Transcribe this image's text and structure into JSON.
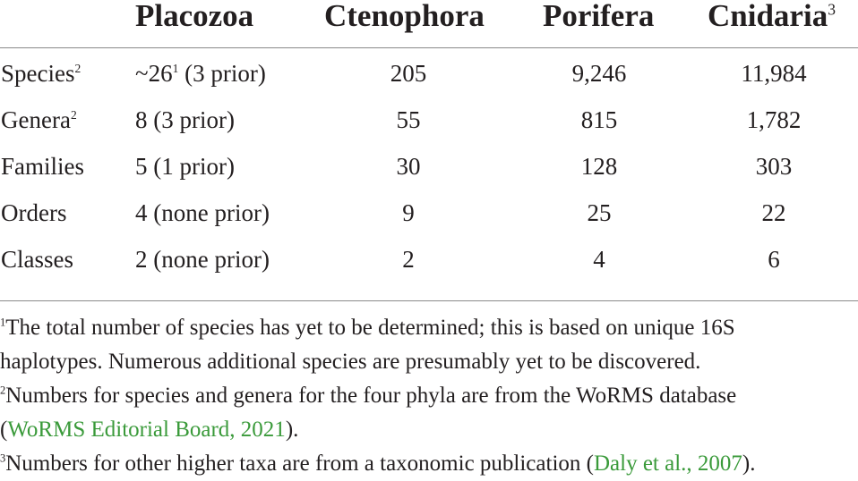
{
  "table": {
    "headers": [
      {
        "label": "Placozoa",
        "sup": ""
      },
      {
        "label": "Ctenophora",
        "sup": ""
      },
      {
        "label": "Porifera",
        "sup": ""
      },
      {
        "label": "Cnidaria",
        "sup": "3"
      }
    ],
    "rows": [
      {
        "label": "Species",
        "label_sup": "2",
        "placozoa_main": "~26",
        "placozoa_sup": "1",
        "placozoa_rest": " (3 prior)",
        "ctenophora": "205",
        "porifera": "9,246",
        "cnidaria": "11,984"
      },
      {
        "label": "Genera",
        "label_sup": "2",
        "placozoa_main": "8 (3 prior)",
        "ctenophora": "55",
        "porifera": "815",
        "cnidaria": "1,782"
      },
      {
        "label": "Families",
        "placozoa_main": "5 (1 prior)",
        "ctenophora": "30",
        "porifera": "128",
        "cnidaria": "303"
      },
      {
        "label": "Orders",
        "placozoa_main": "4 (none prior)",
        "ctenophora": "9",
        "porifera": "25",
        "cnidaria": "22"
      },
      {
        "label": "Classes",
        "placozoa_main": "2 (none prior)",
        "ctenophora": "2",
        "porifera": "4",
        "cnidaria": "6"
      }
    ]
  },
  "footnotes": {
    "n1": {
      "mark": "1",
      "line1": "The total number of species has yet to be determined; this is based on unique 16S",
      "line2": "haplotypes. Numerous additional species are presumably yet to be discovered."
    },
    "n2": {
      "mark": "2",
      "line1": "Numbers for species and genera for the four phyla are from the WoRMS database",
      "open": "(",
      "link": "WoRMS Editorial Board, 2021",
      "close": ")."
    },
    "n3": {
      "mark": "3",
      "text": "Numbers for other higher taxa are from a taxonomic publication (",
      "link": "Daly et al., 2007",
      "close": ")."
    }
  },
  "colors": {
    "text": "#231f20",
    "link": "#3a9a3a",
    "rule": "#8a8a8a"
  }
}
